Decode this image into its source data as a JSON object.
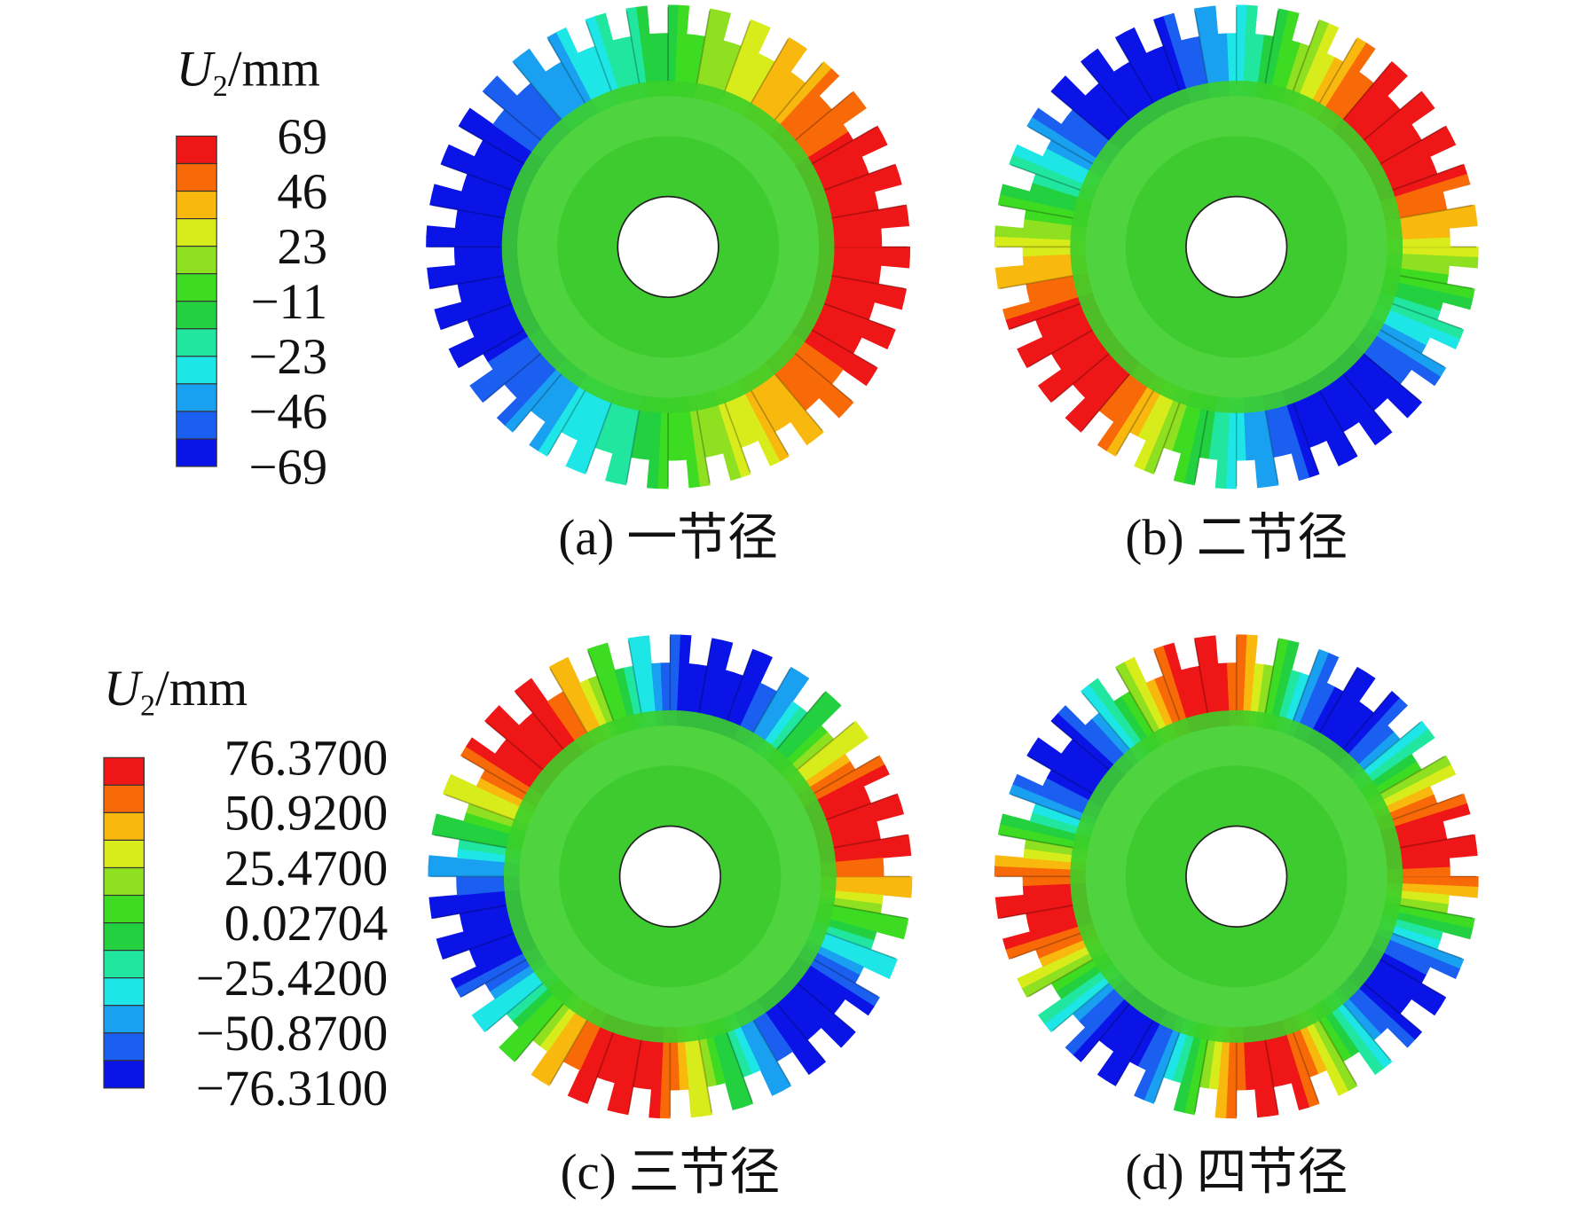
{
  "legends": [
    {
      "symbol": "U",
      "subscript": "2",
      "unit": "/mm",
      "labels": [
        "69",
        "46",
        "23",
        "−11",
        "−23",
        "−46",
        "−69"
      ]
    },
    {
      "symbol": "U",
      "subscript": "2",
      "unit": "/mm",
      "labels": [
        "76.3700",
        "50.9200",
        "25.4700",
        "0.02704",
        "−25.4200",
        "−50.8700",
        "−76.3100"
      ]
    }
  ],
  "panels": [
    {
      "caption": "(a) 一节径"
    },
    {
      "caption": "(b) 二节径"
    },
    {
      "caption": "(c) 三节径"
    },
    {
      "caption": "(d) 四节径"
    }
  ]
}
